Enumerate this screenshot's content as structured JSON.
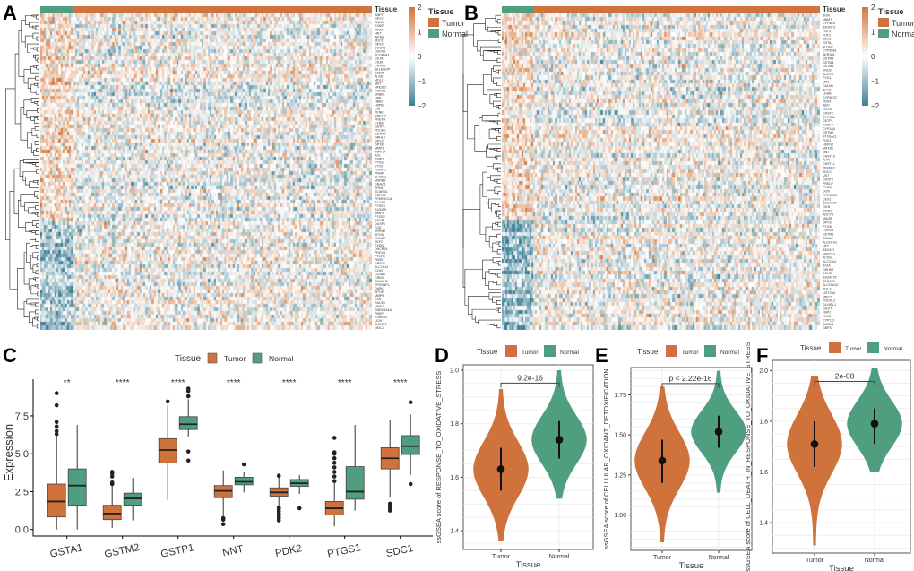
{
  "colors": {
    "tumor": "#d0723c",
    "normal": "#4f9e80",
    "low": "#3d7f96",
    "mid": "#ffffff",
    "high": "#d2763a"
  },
  "panels": {
    "A": "A",
    "B": "B",
    "C": "C",
    "D": "D",
    "E": "E",
    "F": "F"
  },
  "legend": {
    "title": "Tissue",
    "tumor": "Tumor",
    "normal": "Normal",
    "scale": [
      "2",
      "1",
      "0",
      "−1",
      "−2"
    ]
  },
  "chart_data": [
    {
      "type": "heatmap",
      "panel": "A",
      "annotation": "Tissue",
      "scale": [
        -2,
        2
      ],
      "normal_fraction": 0.1,
      "genes": [
        "BMP7",
        "GPX7",
        "ANXA1",
        "TXNIP",
        "PDK2",
        "NNT",
        "AIFM2",
        "SDC1",
        "GPX2",
        "DUOX1",
        "DUOX2",
        "SCGB1A1",
        "GSTA1",
        "CD36",
        "CRYAB",
        "SELENOP",
        "STK26",
        "ALAD",
        "MGLL",
        "MET",
        "NFE2L2",
        "FOXO1",
        "ERBB1",
        "HBB",
        "HBA2",
        "HSPB1",
        "CAT",
        "PENK",
        "RNF112",
        "PRDX4",
        "CYBA",
        "GSTP1",
        "PDLIM1",
        "GSTM2",
        "GRHL2",
        "GPX3",
        "GPX8",
        "MMP2",
        "MMP14",
        "AXL",
        "PSIP1",
        "PTGS1",
        "ETV5",
        "PDGFD",
        "PRNP",
        "SLC8A1",
        "MSRB3",
        "GNAO1",
        "TPM1",
        "SCARA3",
        "RBPMS",
        "PPARGC1A",
        "ACOX2",
        "PTGES",
        "S100A9",
        "MMP3",
        "PTGS2",
        "RHOB",
        "DUSP1",
        "FOS",
        "TRPM2",
        "APOD",
        "KCNC2",
        "EEF2",
        "PXDN",
        "DHCR24",
        "PRDX4",
        "PYCR1",
        "PARK7",
        "GPR37",
        "SLC7A11",
        "EZH2",
        "CCNA2",
        "CRK8",
        "CAMKK2",
        "TP53INP1",
        "DAPK1",
        "APOE",
        "MMP9",
        "TXN",
        "RACK1",
        "NME2",
        "TMEM161A",
        "PNKP",
        "TXNRD2",
        "UCN",
        "ANKZF1",
        "NEIL1"
      ]
    },
    {
      "type": "heatmap",
      "panel": "B",
      "annotation": "Tissue",
      "scale": [
        -2,
        2
      ],
      "normal_fraction": 0.1,
      "genes": [
        "BGN",
        "NNMT",
        "CYP4F8",
        "B3GNT3",
        "FUT3",
        "FUT2",
        "SDC1",
        "GSTA1",
        "ALDH2",
        "CYP20A1",
        "AKR1B1",
        "GSTM3",
        "GSTM4",
        "GSTM5",
        "ENO2",
        "ALDOC",
        "PYGL",
        "ME1",
        "CALM1",
        "ACO1",
        "LDHB",
        "CYP4F22",
        "PDK4",
        "ABO",
        "GGT6",
        "CHST2",
        "CYP4B1",
        "GSTP1",
        "ACSF2",
        "CYP3A5",
        "GSTM2",
        "ST3GAL1",
        "PDK2",
        "HSPG2",
        "MAT2B",
        "NNT",
        "CHST15",
        "AHR",
        "CHST11",
        "PFKFB3",
        "SDC2",
        "UST",
        "CHST3",
        "PRELP",
        "PTGS1",
        "DCN",
        "PPP1R3C",
        "CES1",
        "B3GALT2",
        "OGN",
        "PTGIS",
        "ADCY5",
        "MAOB",
        "DPYS",
        "PYGM",
        "CSPG4",
        "GSTM1",
        "ACAA2",
        "ALDH1A1",
        "HK2",
        "B3GAT1",
        "NUP210",
        "ACSS1",
        "SLC37A1",
        "IDUA",
        "DDHD2",
        "DCXR",
        "B3GALT5",
        "B3GAT3",
        "SLC25A10",
        "PGLS",
        "UGT2B4",
        "MPC2",
        "PODXL2",
        "GLYATL1",
        "GGCT",
        "FBP1",
        "PKLR",
        "CYP2J2",
        "ACSM1",
        "GBP3"
      ]
    },
    {
      "type": "box",
      "panel": "C",
      "ylabel": "Expression",
      "ylim": [
        0,
        9.6
      ],
      "yticks": [
        "0.0",
        "2.5",
        "5.0",
        "7.5"
      ],
      "categories": [
        "GSTA1",
        "GSTM2",
        "GSTP1",
        "NNT",
        "PDK2",
        "PTGS1",
        "SDC1"
      ],
      "significance": [
        "**",
        "****",
        "****",
        "****",
        "****",
        "****",
        "****"
      ],
      "series": [
        {
          "name": "Tumor",
          "boxes": [
            {
              "q1": 0.83,
              "median": 1.85,
              "q3": 3.0,
              "min": 0,
              "max": 6.2,
              "outliers": [
                6.3,
                6.5,
                6.8,
                7.1,
                8.2,
                9.0
              ]
            },
            {
              "q1": 0.65,
              "median": 1.05,
              "q3": 1.6,
              "min": 0.1,
              "max": 2.9,
              "outliers": [
                3.0,
                3.1,
                3.5,
                3.7,
                3.8
              ]
            },
            {
              "q1": 4.4,
              "median": 5.25,
              "q3": 6.0,
              "min": 1.95,
              "max": 8.2,
              "outliers": [
                8.45
              ]
            },
            {
              "q1": 2.1,
              "median": 2.55,
              "q3": 2.9,
              "min": 0.8,
              "max": 3.9,
              "outliers": [
                0.35,
                0.65,
                0.75
              ]
            },
            {
              "q1": 2.2,
              "median": 2.45,
              "q3": 2.75,
              "min": 1.5,
              "max": 3.5,
              "outliers": [
                0.6,
                0.75,
                0.9,
                1.05,
                1.2,
                1.35,
                1.45,
                3.55
              ]
            },
            {
              "q1": 0.95,
              "median": 1.4,
              "q3": 1.85,
              "min": 0.2,
              "max": 3.1,
              "outliers": [
                3.2,
                3.5,
                3.8,
                4.1,
                4.4,
                4.7,
                5.0,
                5.1,
                6.05
              ]
            },
            {
              "q1": 4.0,
              "median": 4.7,
              "q3": 5.4,
              "min": 2.1,
              "max": 7.25,
              "outliers": [
                1.25,
                1.4,
                1.55,
                1.7
              ]
            }
          ]
        },
        {
          "name": "Normal",
          "boxes": [
            {
              "q1": 1.6,
              "median": 2.9,
              "q3": 4.0,
              "min": 0,
              "max": 6.9,
              "outliers": []
            },
            {
              "q1": 1.6,
              "median": 2.05,
              "q3": 2.4,
              "min": 0.6,
              "max": 3.4,
              "outliers": []
            },
            {
              "q1": 6.6,
              "median": 6.95,
              "q3": 7.45,
              "min": 6.1,
              "max": 8.6,
              "outliers": [
                4.55,
                5.15,
                8.8,
                9.15,
                9.3
              ]
            },
            {
              "q1": 2.95,
              "median": 3.15,
              "q3": 3.45,
              "min": 2.45,
              "max": 3.8,
              "outliers": [
                4.3
              ]
            },
            {
              "q1": 2.85,
              "median": 3.05,
              "q3": 3.3,
              "min": 2.35,
              "max": 3.6,
              "outliers": [
                1.4
              ]
            },
            {
              "q1": 2.0,
              "median": 2.5,
              "q3": 4.15,
              "min": 1.25,
              "max": 6.9,
              "outliers": []
            },
            {
              "q1": 4.95,
              "median": 5.5,
              "q3": 6.2,
              "min": 3.6,
              "max": 7.6,
              "outliers": [
                3.0,
                8.4
              ]
            }
          ]
        }
      ]
    },
    {
      "type": "violin",
      "panel": "D",
      "xlabel": "Tissue",
      "ylabel": "ssGSEA score of RESPONSE_TO_OXIDATIVE_STRESS",
      "ylim": [
        1.33,
        2.02
      ],
      "yticks": [
        "1.4",
        "1.6",
        "1.8",
        "2.0"
      ],
      "categories": [
        "Tumor",
        "Normal"
      ],
      "pvalue": "9.2e-16",
      "groups": [
        {
          "mean": 1.63,
          "low": 1.55,
          "high": 1.71,
          "min": 1.36,
          "max": 1.93
        },
        {
          "mean": 1.74,
          "low": 1.67,
          "high": 1.81,
          "min": 1.52,
          "max": 2.0
        }
      ]
    },
    {
      "type": "violin",
      "panel": "E",
      "xlabel": "Tissue",
      "ylabel": "ssGSEA score of CELLULAR_OXIDANT_DETOXIFICATION",
      "ylim": [
        0.78,
        1.92
      ],
      "yticks": [
        "1.00",
        "1.25",
        "1.50",
        "1.75"
      ],
      "categories": [
        "Tumor",
        "Normal"
      ],
      "pvalue": "p < 2.22e-16",
      "groups": [
        {
          "mean": 1.34,
          "low": 1.2,
          "high": 1.47,
          "min": 0.83,
          "max": 1.8
        },
        {
          "mean": 1.52,
          "low": 1.42,
          "high": 1.62,
          "min": 1.14,
          "max": 1.9
        }
      ]
    },
    {
      "type": "violin",
      "panel": "F",
      "xlabel": "Tissue",
      "ylabel": "ssGSEA score of CELL_DEATH_IN_RESPONSE_TO_OXIDATIVE_STRESS",
      "ylim": [
        1.28,
        2.04
      ],
      "yticks": [
        "1.4",
        "1.6",
        "1.8",
        "2.0"
      ],
      "categories": [
        "Tumor",
        "Normal"
      ],
      "pvalue": "2e-08",
      "groups": [
        {
          "mean": 1.71,
          "low": 1.62,
          "high": 1.8,
          "min": 1.31,
          "max": 1.98
        },
        {
          "mean": 1.79,
          "low": 1.71,
          "high": 1.85,
          "min": 1.6,
          "max": 2.01
        }
      ]
    }
  ]
}
